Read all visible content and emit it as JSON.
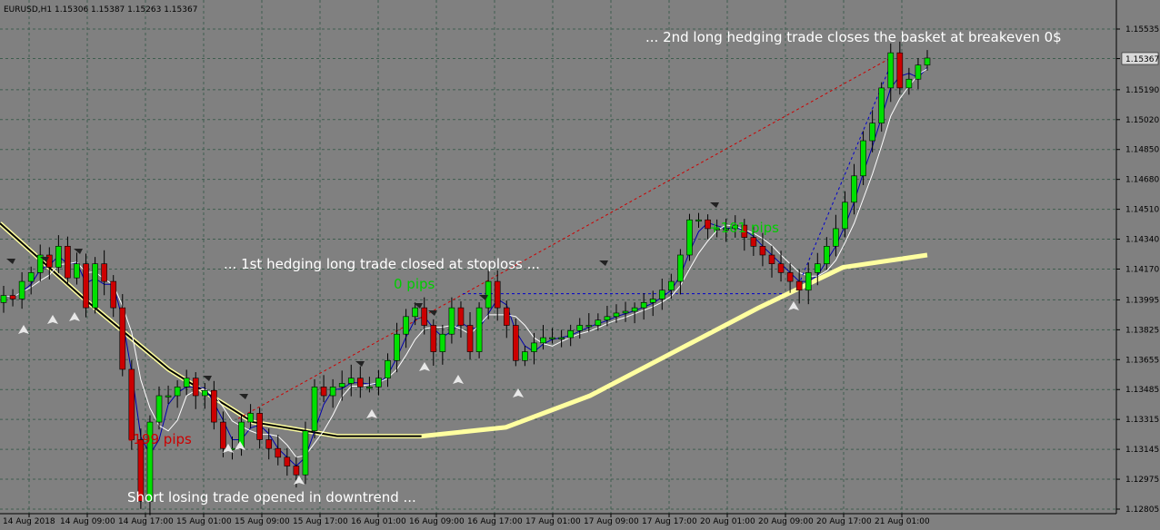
{
  "symbol_header": "EURUSD,H1  1.15306 1.15387 1.15263 1.15367",
  "current_price": "1.15367",
  "colors": {
    "background": "#808080",
    "grid": "#3f5e4f",
    "bull": "#00e000",
    "bear": "#cc0000",
    "ma_yellow": "#ffffa0",
    "ma_blue": "#0000aa",
    "ma_white": "#ffffff",
    "annotation_text": "#ffffff",
    "pips_negative": "#cc0000",
    "pips_positive": "#00cc00",
    "trend_red": "#cc0000",
    "trend_blue": "#0000cc"
  },
  "annotations": {
    "top_right": "... 2nd long hedging trade closes the basket at breakeven 0$",
    "middle": "... 1st hedging long trade closed at stoploss ...",
    "bottom": "Short losing trade opened in downtrend ...",
    "pips_zero": "0 pips",
    "pips_pos": "+101 pips",
    "pips_neg": "-199 pips"
  },
  "chart_data": {
    "type": "candlestick",
    "symbol": "EURUSD",
    "timeframe": "H1",
    "y_ticks": [
      "1.15535",
      "1.15367",
      "1.15190",
      "1.15020",
      "1.14850",
      "1.14680",
      "1.14510",
      "1.14340",
      "1.14170",
      "1.13995",
      "1.13825",
      "1.13655",
      "1.13485",
      "1.13315",
      "1.13145",
      "1.12975",
      "1.12805"
    ],
    "y_range": [
      1.12805,
      1.15535
    ],
    "x_ticks": [
      "14 Aug 2018",
      "14 Aug 09:00",
      "14 Aug 17:00",
      "15 Aug 01:00",
      "15 Aug 09:00",
      "15 Aug 17:00",
      "16 Aug 01:00",
      "16 Aug 09:00",
      "16 Aug 17:00",
      "17 Aug 01:00",
      "17 Aug 09:00",
      "17 Aug 17:00",
      "20 Aug 01:00",
      "20 Aug 09:00",
      "20 Aug 17:00",
      "21 Aug 01:00"
    ],
    "candles_anchors": [
      1.1402,
      1.14,
      1.141,
      1.1415,
      1.1425,
      1.1418,
      1.143,
      1.1412,
      1.142,
      1.1395,
      1.142,
      1.141,
      1.1395,
      1.136,
      1.132,
      1.1285,
      1.133,
      1.1345,
      1.1345,
      1.135,
      1.1355,
      1.1345,
      1.1348,
      1.133,
      1.1315,
      1.1315,
      1.133,
      1.1335,
      1.132,
      1.1315,
      1.131,
      1.1305,
      1.13,
      1.1325,
      1.135,
      1.1345,
      1.135,
      1.1352,
      1.1355,
      1.135,
      1.135,
      1.1355,
      1.1365,
      1.138,
      1.139,
      1.1395,
      1.1385,
      1.137,
      1.138,
      1.1395,
      1.1385,
      1.137,
      1.1395,
      1.141,
      1.1395,
      1.1385,
      1.1365,
      1.137,
      1.1375,
      1.1378,
      1.1378,
      1.1378,
      1.1382,
      1.1385,
      1.1385,
      1.1388,
      1.139,
      1.1392,
      1.1393,
      1.1395,
      1.1398,
      1.14,
      1.1405,
      1.141,
      1.1425,
      1.1445,
      1.1445,
      1.144,
      1.144,
      1.144,
      1.1442,
      1.1435,
      1.143,
      1.1425,
      1.142,
      1.1415,
      1.141,
      1.1405,
      1.1415,
      1.142,
      1.143,
      1.144,
      1.1455,
      1.147,
      1.149,
      1.15,
      1.152,
      1.154,
      1.152,
      1.1525,
      1.1533,
      1.1537
    ],
    "moving_average_slow": [
      1.1443,
      1.14,
      1.136,
      1.133,
      1.1322,
      1.1322,
      1.1327,
      1.1345,
      1.137,
      1.1395,
      1.1418,
      1.1425
    ],
    "hedge_lines": {
      "red_dotted_from": 1.1332,
      "red_dotted_to": 1.1538,
      "blue_dotted_level": 1.1403,
      "blue_dotted_upper_to": 1.1537
    }
  }
}
